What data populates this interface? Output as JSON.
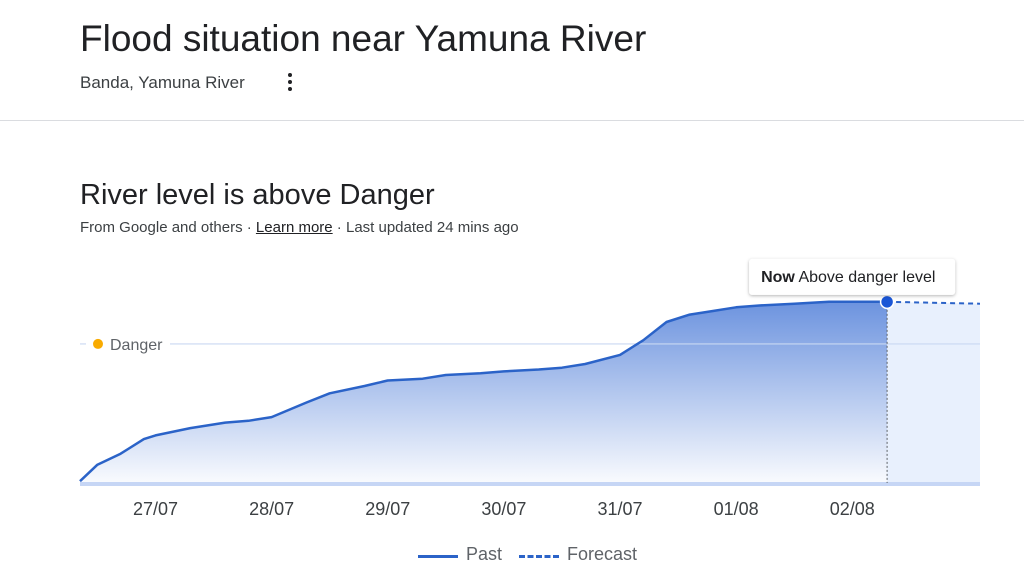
{
  "header": {
    "title": "Flood situation near Yamuna River",
    "location": "Banda, Yamuna River",
    "more_icon": "more-vert-icon"
  },
  "status": {
    "title": "River level is above Danger",
    "source_prefix": "From Google and others · ",
    "learn_more": "Learn more",
    "updated": " · Last updated 24 mins ago"
  },
  "colors": {
    "line": "#2b63c8",
    "danger_dot": "#f9ab00",
    "baseline": "#c6d6f5"
  },
  "chart_data": {
    "type": "area",
    "x_tick_labels": [
      "27/07",
      "28/07",
      "29/07",
      "30/07",
      "31/07",
      "01/08",
      "02/08"
    ],
    "x_ticks": [
      1,
      2,
      3,
      4,
      5,
      6,
      7
    ],
    "xlim": [
      0.35,
      8.1
    ],
    "ylim": [
      0,
      100
    ],
    "threshold": {
      "label": "Danger",
      "value": 76
    },
    "now": {
      "x": 7.3,
      "y": 99,
      "label_bold": "Now",
      "label_text": "Above danger level"
    },
    "series": [
      {
        "name": "Past",
        "style": "solid",
        "x": [
          0.35,
          0.5,
          0.7,
          0.9,
          1.0,
          1.3,
          1.6,
          1.8,
          2.0,
          2.3,
          2.5,
          2.8,
          3.0,
          3.3,
          3.5,
          3.8,
          4.0,
          4.3,
          4.5,
          4.7,
          5.0,
          5.2,
          5.4,
          5.6,
          5.8,
          6.0,
          6.2,
          6.5,
          6.8,
          7.0,
          7.3
        ],
        "y": [
          1,
          10,
          16,
          24,
          26,
          30,
          33,
          34,
          36,
          44,
          49,
          53,
          56,
          57,
          59,
          60,
          61,
          62,
          63,
          65,
          70,
          78,
          88,
          92,
          94,
          96,
          97,
          98,
          99,
          99,
          99
        ]
      },
      {
        "name": "Forecast",
        "style": "dashed",
        "x": [
          7.3,
          8.1
        ],
        "y": [
          99,
          98
        ]
      }
    ],
    "legend_position": "bottom-center",
    "grid": false
  }
}
